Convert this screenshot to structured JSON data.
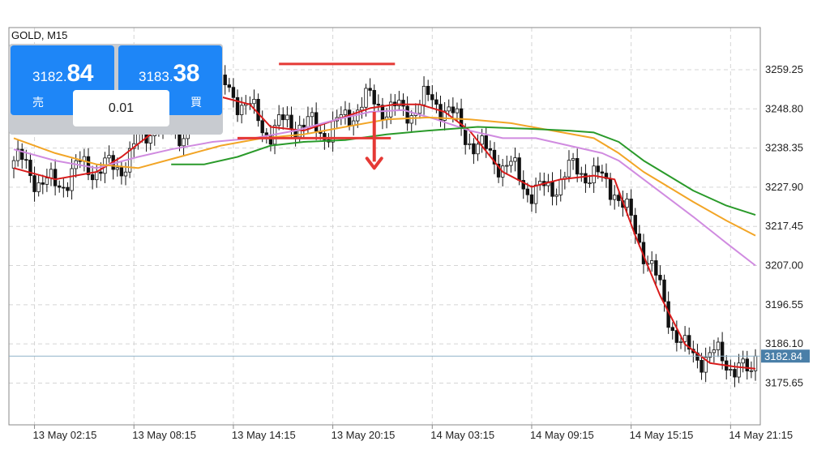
{
  "symbol_label": "GOLD, M15",
  "trade_panel": {
    "sell": {
      "price_prefix": "3182.",
      "price_big": "84",
      "label": "売"
    },
    "buy": {
      "price_prefix": "3183.",
      "price_big": "38",
      "label": "買"
    },
    "lot_size": "0.01",
    "button_color": "#1e86f7"
  },
  "current_price_label": "3182.84",
  "chart_data": {
    "type": "candlestick",
    "title": "",
    "xlabel": "",
    "ylabel": "",
    "ylim": [
      3164.5,
      3270.5
    ],
    "grid": true,
    "y_ticks": [
      3259.25,
      3248.8,
      3238.35,
      3227.9,
      3217.45,
      3207.0,
      3196.55,
      3186.1,
      3175.65
    ],
    "y_tick_labels": [
      "3259.25",
      "3248.80",
      "3238.35",
      "3227.90",
      "3217.45",
      "3207.00",
      "3196.55",
      "3186.10",
      "3175.65"
    ],
    "x_tick_labels": [
      "13 May 02:15",
      "13 May 08:15",
      "13 May 14:15",
      "13 May 20:15",
      "14 May 03:15",
      "14 May 09:15",
      "14 May 15:15",
      "14 May 21:15"
    ],
    "x_tick_candle_index": [
      5,
      29,
      53,
      77,
      101,
      125,
      149,
      173
    ],
    "candle_count": 180,
    "current_price": 3182.84,
    "candle_colors": {
      "bullish": "#ffffff",
      "bearish": "#111111",
      "wick": "#111111"
    },
    "moving_averages": [
      {
        "color": "#d81b1b",
        "points": [
          [
            0,
            3233
          ],
          [
            10,
            3230
          ],
          [
            20,
            3232
          ],
          [
            26,
            3236
          ],
          [
            33,
            3242
          ],
          [
            42,
            3245
          ],
          [
            50,
            3252
          ],
          [
            57,
            3250
          ],
          [
            62,
            3244
          ],
          [
            70,
            3243
          ],
          [
            78,
            3246
          ],
          [
            86,
            3249
          ],
          [
            92,
            3250
          ],
          [
            98,
            3250
          ],
          [
            104,
            3248
          ],
          [
            110,
            3243
          ],
          [
            118,
            3232
          ],
          [
            125,
            3228
          ],
          [
            132,
            3230
          ],
          [
            140,
            3231
          ],
          [
            145,
            3230
          ],
          [
            150,
            3215
          ],
          [
            156,
            3199
          ],
          [
            162,
            3186
          ],
          [
            168,
            3181
          ],
          [
            174,
            3180
          ],
          [
            179,
            3179.5
          ]
        ]
      },
      {
        "color": "#d08be0",
        "points": [
          [
            0,
            3238
          ],
          [
            10,
            3235
          ],
          [
            20,
            3233
          ],
          [
            30,
            3236
          ],
          [
            38,
            3238
          ],
          [
            48,
            3240
          ],
          [
            58,
            3241
          ],
          [
            68,
            3243
          ],
          [
            78,
            3246
          ],
          [
            86,
            3248
          ],
          [
            94,
            3248.5
          ],
          [
            102,
            3246
          ],
          [
            110,
            3243
          ],
          [
            118,
            3241
          ],
          [
            126,
            3241
          ],
          [
            134,
            3239
          ],
          [
            142,
            3237
          ],
          [
            146,
            3235
          ],
          [
            152,
            3230
          ],
          [
            158,
            3225
          ],
          [
            164,
            3220
          ],
          [
            172,
            3213
          ],
          [
            179,
            3207
          ]
        ]
      },
      {
        "color": "#f2a526",
        "points": [
          [
            0,
            3241
          ],
          [
            10,
            3237
          ],
          [
            20,
            3234
          ],
          [
            30,
            3233
          ],
          [
            40,
            3236
          ],
          [
            50,
            3239
          ],
          [
            60,
            3241
          ],
          [
            70,
            3242
          ],
          [
            80,
            3244
          ],
          [
            90,
            3246
          ],
          [
            100,
            3246.5
          ],
          [
            110,
            3246
          ],
          [
            120,
            3245
          ],
          [
            130,
            3243
          ],
          [
            140,
            3241
          ],
          [
            146,
            3237
          ],
          [
            152,
            3232
          ],
          [
            158,
            3228
          ],
          [
            164,
            3224
          ],
          [
            172,
            3219
          ],
          [
            179,
            3215
          ]
        ]
      },
      {
        "color": "#2a9a2a",
        "points": [
          [
            38,
            3234
          ],
          [
            46,
            3234
          ],
          [
            54,
            3236
          ],
          [
            62,
            3239
          ],
          [
            70,
            3240
          ],
          [
            80,
            3240.5
          ],
          [
            90,
            3242
          ],
          [
            100,
            3243
          ],
          [
            112,
            3244
          ],
          [
            124,
            3243.5
          ],
          [
            134,
            3243
          ],
          [
            140,
            3242.5
          ],
          [
            146,
            3240
          ],
          [
            152,
            3235
          ],
          [
            158,
            3231
          ],
          [
            164,
            3227
          ],
          [
            172,
            3223
          ],
          [
            179,
            3220.5
          ]
        ]
      }
    ],
    "annotations": [
      {
        "kind": "hline",
        "color": "#e53935",
        "y": 3260.8,
        "x_from": 64,
        "x_to": 92
      },
      {
        "kind": "hline",
        "color": "#e53935",
        "y": 3241.0,
        "x_from": 54,
        "x_to": 91
      },
      {
        "kind": "arrow",
        "color": "#e53935",
        "x": 87,
        "y_from": 3248.0,
        "y_to": 3233.0
      }
    ]
  }
}
